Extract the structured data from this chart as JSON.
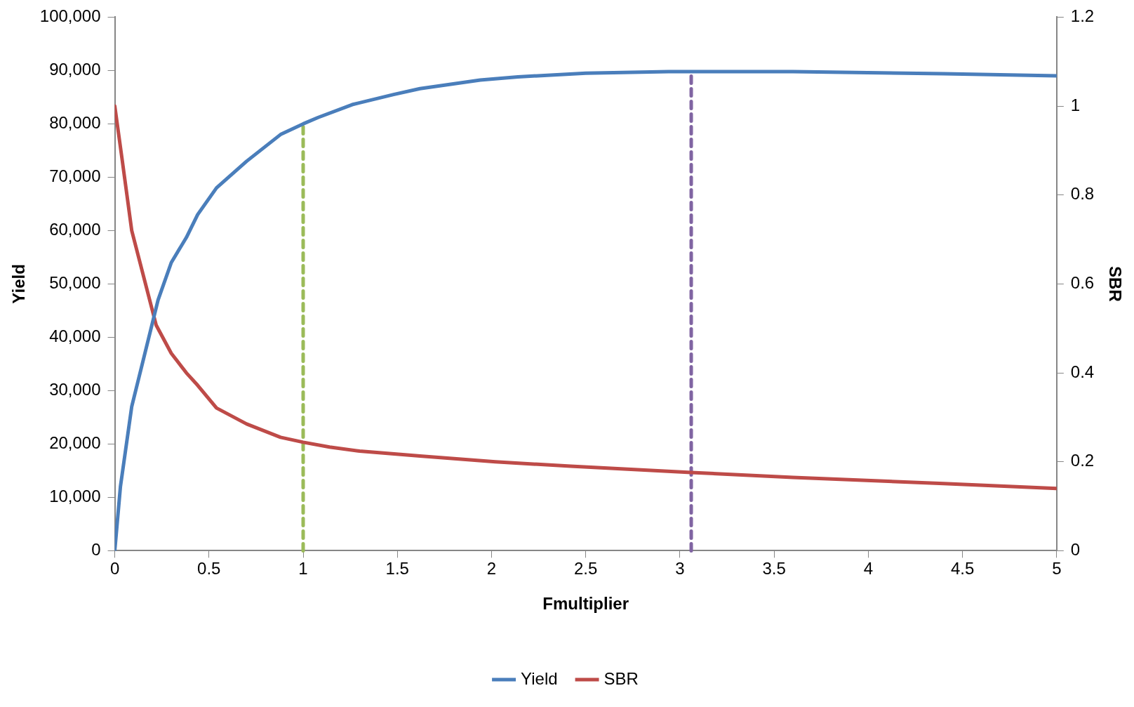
{
  "chart_data": {
    "type": "line",
    "xlabel": "Fmultiplier",
    "ylabel": "Yield",
    "y2label": "SBR",
    "xlim": [
      0,
      5
    ],
    "xticks": [
      0,
      0.5,
      1,
      1.5,
      2,
      2.5,
      3,
      3.5,
      4,
      4.5,
      5
    ],
    "ylim": [
      0,
      100000
    ],
    "yticks": [
      0,
      {
        "value": 10000,
        "label": "10,000"
      },
      {
        "value": 20000,
        "label": "20,000"
      },
      {
        "value": 30000,
        "label": "30,000"
      },
      {
        "value": 40000,
        "label": "40,000"
      },
      {
        "value": 50000,
        "label": "50,000"
      },
      {
        "value": 60000,
        "label": "60,000"
      },
      {
        "value": 70000,
        "label": "70,000"
      },
      {
        "value": 80000,
        "label": "80,000"
      },
      {
        "value": 90000,
        "label": "90,000"
      },
      {
        "value": 100000,
        "label": "100,000"
      }
    ],
    "y2lim": [
      0,
      1.2
    ],
    "y2ticks": [
      0,
      0.2,
      0.4,
      0.6,
      0.8,
      1,
      1.2
    ],
    "series": [
      {
        "name": "Yield",
        "color": "#4a7ebb",
        "x": [
          0,
          0.03,
          0.09,
          0.23,
          0.3,
          0.38,
          0.44,
          0.54,
          0.7,
          0.88,
          1,
          1.08,
          1.26,
          1.48,
          1.62,
          1.94,
          2.14,
          2.5,
          2.94,
          3.6,
          4.4,
          5
        ],
        "values": [
          0,
          12000,
          27000,
          47000,
          54000,
          58700,
          63000,
          68000,
          73000,
          78000,
          80000,
          81200,
          83600,
          85500,
          86600,
          88200,
          88800,
          89500,
          89800,
          89800,
          89400,
          89000
        ]
      },
      {
        "name": "SBR",
        "color": "#be4b48",
        "axis": "y2",
        "x": [
          0,
          0.04,
          0.09,
          0.22,
          0.3,
          0.38,
          0.44,
          0.54,
          0.7,
          0.88,
          1,
          1.14,
          1.3,
          1.62,
          2.02,
          2.42,
          3.06,
          3.6,
          4.4,
          5
        ],
        "values": [
          1,
          0.877,
          0.72,
          0.507,
          0.444,
          0.4,
          0.372,
          0.321,
          0.285,
          0.255,
          0.244,
          0.233,
          0.224,
          0.213,
          0.2,
          0.19,
          0.176,
          0.165,
          0.151,
          0.14
        ]
      }
    ],
    "ref_lines": [
      {
        "axis": "x",
        "value": 1,
        "color": "#9bbb59",
        "line_style": "dashed"
      },
      {
        "axis": "x",
        "value": 3.06,
        "color": "#8064a2",
        "line_style": "dashed"
      }
    ],
    "legend": "bottom",
    "grid": false,
    "marker": "none",
    "line_style": "solid"
  }
}
